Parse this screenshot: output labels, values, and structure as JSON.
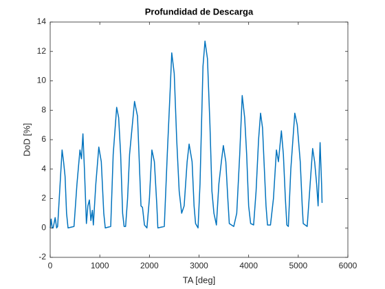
{
  "chart_data": {
    "type": "line",
    "title": "Profundidad de Descarga",
    "x_label": "TA [deg]",
    "y_label": "DoD [%]",
    "x": [
      0,
      20,
      40,
      60,
      100,
      130,
      150,
      200,
      240,
      270,
      300,
      330,
      360,
      480,
      540,
      600,
      630,
      660,
      690,
      730,
      760,
      790,
      820,
      850,
      870,
      920,
      980,
      1030,
      1080,
      1110,
      1220,
      1270,
      1340,
      1380,
      1420,
      1460,
      1490,
      1520,
      1560,
      1600,
      1700,
      1760,
      1790,
      1830,
      1860,
      1900,
      1950,
      2000,
      2050,
      2100,
      2150,
      2170,
      2300,
      2360,
      2420,
      2450,
      2500,
      2550,
      2600,
      2650,
      2700,
      2760,
      2800,
      2860,
      2900,
      2930,
      2980,
      3020,
      3080,
      3120,
      3170,
      3220,
      3260,
      3300,
      3350,
      3400,
      3450,
      3490,
      3540,
      3580,
      3610,
      3700,
      3760,
      3820,
      3870,
      3920,
      3960,
      4000,
      4040,
      4100,
      4150,
      4200,
      4240,
      4280,
      4310,
      4350,
      4380,
      4440,
      4500,
      4560,
      4600,
      4660,
      4700,
      4740,
      4770,
      4800,
      4850,
      4930,
      4980,
      5040,
      5080,
      5100,
      5180,
      5240,
      5290,
      5330,
      5370,
      5400,
      5440,
      5470,
      5480
    ],
    "series": [
      {
        "name": "DoD",
        "color": "#0072bd",
        "values": [
          0,
          0.6,
          0,
          0,
          0.7,
          0,
          0.1,
          3,
          5.3,
          4.5,
          3.5,
          1.0,
          0,
          0.1,
          3,
          5.3,
          4.7,
          6.4,
          4,
          0.3,
          1.5,
          1.9,
          0.5,
          1.2,
          0.2,
          3,
          5.5,
          4.5,
          1,
          0,
          0.1,
          5,
          8.2,
          7.5,
          5,
          1,
          0.1,
          0.1,
          2,
          5,
          8.6,
          7.6,
          5,
          1.5,
          1.4,
          0.2,
          0,
          2,
          5.3,
          4.5,
          1.5,
          0,
          0.1,
          5,
          9.5,
          11.9,
          10.5,
          6,
          2.5,
          1,
          1.5,
          4.5,
          5.7,
          4.5,
          1.5,
          0.3,
          0,
          3,
          11,
          12.7,
          11.5,
          7,
          2.5,
          1,
          0.2,
          3,
          4.5,
          5.6,
          4.5,
          2,
          0.3,
          0.1,
          1,
          5,
          9.0,
          7.5,
          5,
          1.5,
          0.3,
          0.2,
          2.5,
          6,
          7.8,
          6.8,
          4.5,
          1.5,
          0.2,
          0.2,
          2,
          5.3,
          4.5,
          6.6,
          5,
          2,
          0.2,
          0.1,
          4,
          7.8,
          7,
          4.5,
          1.5,
          0.3,
          0.1,
          3,
          5.4,
          4.5,
          3,
          1.5,
          5.8,
          3,
          1.7
        ]
      }
    ],
    "xlim": [
      0,
      6000
    ],
    "xticks": [
      0,
      1000,
      2000,
      3000,
      4000,
      5000,
      6000
    ],
    "ylim": [
      -2,
      14
    ],
    "yticks": [
      -2,
      0,
      2,
      4,
      6,
      8,
      10,
      12,
      14
    ]
  }
}
